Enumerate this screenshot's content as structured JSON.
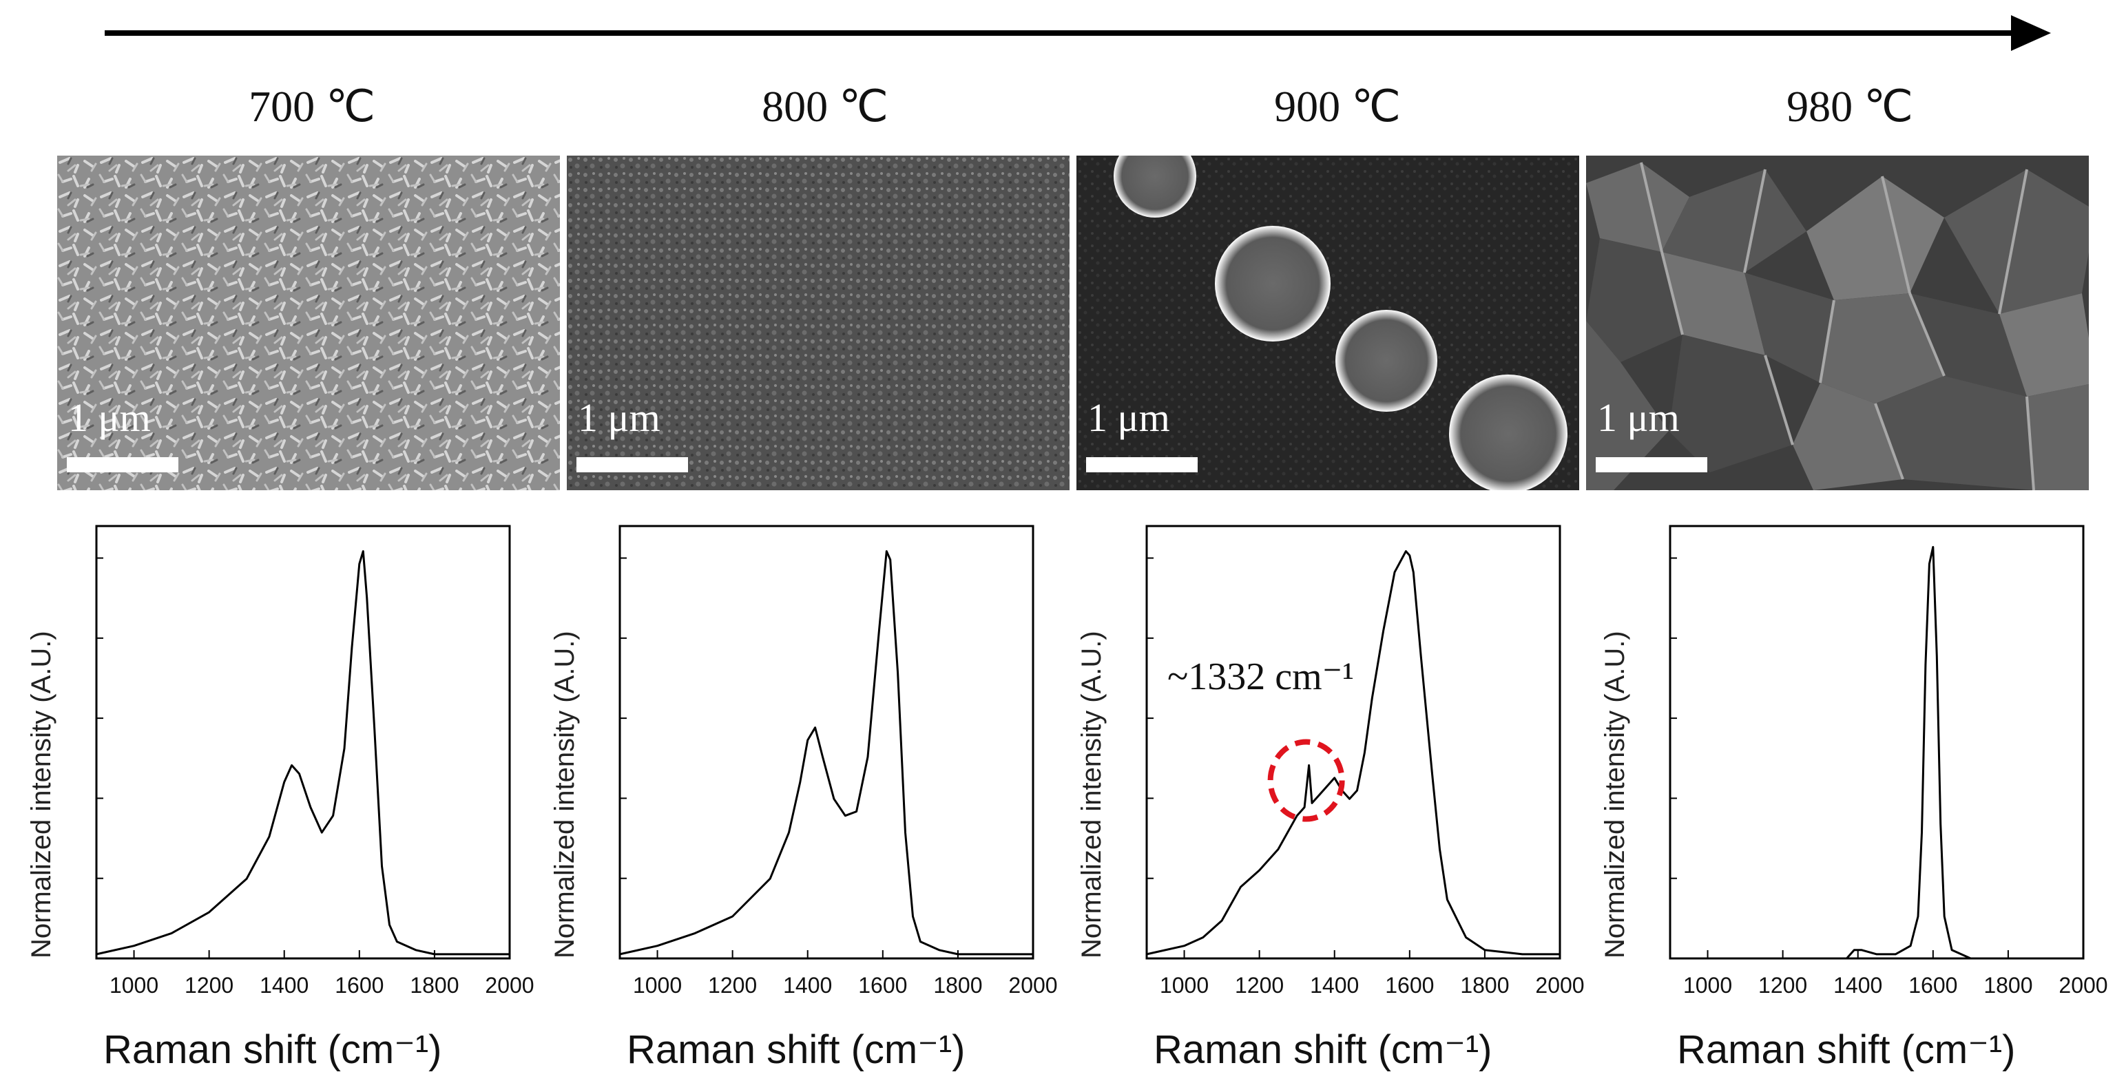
{
  "figure": {
    "temperatures": [
      "700 ℃",
      "800 ℃",
      "900 ℃",
      "980 ℃"
    ],
    "scale_bar_label": "1 μm",
    "morphology": [
      "nanoflake film",
      "fine granular film",
      "particles on dark substrate",
      "crumpled sheets"
    ]
  },
  "colors": {
    "line": "#000000",
    "marker": "#e0141e",
    "sem_background": "#2c2c2c"
  },
  "chart_data": [
    {
      "type": "line",
      "panel": "700 ℃",
      "xlabel": "Raman shift (cm⁻¹)",
      "ylabel": "Normalized intensity (A.U.)",
      "xlim": [
        900,
        2000
      ],
      "ylim": [
        0,
        1.03
      ],
      "xticks": [
        "1000",
        "1200",
        "1400",
        "1600",
        "1800",
        "2000"
      ],
      "x": [
        900,
        1000,
        1100,
        1200,
        1300,
        1360,
        1400,
        1420,
        1440,
        1470,
        1500,
        1530,
        1560,
        1580,
        1600,
        1610,
        1620,
        1640,
        1660,
        1680,
        1700,
        1750,
        1800,
        1900,
        2000
      ],
      "values": [
        0.01,
        0.03,
        0.06,
        0.11,
        0.19,
        0.29,
        0.42,
        0.46,
        0.44,
        0.36,
        0.3,
        0.34,
        0.5,
        0.74,
        0.94,
        0.97,
        0.86,
        0.55,
        0.22,
        0.08,
        0.04,
        0.02,
        0.01,
        0.01,
        0.01
      ]
    },
    {
      "type": "line",
      "panel": "800 ℃",
      "xlabel": "Raman shift (cm⁻¹)",
      "ylabel": "Normalized intensity (A.U.)",
      "xlim": [
        900,
        2000
      ],
      "ylim": [
        0,
        1.03
      ],
      "xticks": [
        "1000",
        "1200",
        "1400",
        "1600",
        "1800",
        "2000"
      ],
      "x": [
        900,
        1000,
        1100,
        1200,
        1300,
        1350,
        1380,
        1400,
        1420,
        1440,
        1470,
        1500,
        1530,
        1560,
        1590,
        1610,
        1620,
        1640,
        1660,
        1680,
        1700,
        1750,
        1800,
        1900,
        2000
      ],
      "values": [
        0.01,
        0.03,
        0.06,
        0.1,
        0.19,
        0.3,
        0.42,
        0.52,
        0.55,
        0.48,
        0.38,
        0.34,
        0.35,
        0.48,
        0.78,
        0.97,
        0.95,
        0.68,
        0.3,
        0.1,
        0.04,
        0.02,
        0.01,
        0.01,
        0.01
      ]
    },
    {
      "type": "line",
      "panel": "900 ℃",
      "xlabel": "Raman shift (cm⁻¹)",
      "ylabel": "Normalized intensity (A.U.)",
      "xlim": [
        900,
        2000
      ],
      "ylim": [
        0,
        1.03
      ],
      "xticks": [
        "1000",
        "1200",
        "1400",
        "1600",
        "1800",
        "2000"
      ],
      "annotation": "~1332 cm⁻¹",
      "highlight_x": 1332,
      "x": [
        900,
        1000,
        1050,
        1100,
        1150,
        1200,
        1250,
        1300,
        1320,
        1332,
        1340,
        1360,
        1380,
        1400,
        1420,
        1440,
        1460,
        1480,
        1500,
        1530,
        1560,
        1590,
        1600,
        1610,
        1630,
        1660,
        1680,
        1700,
        1750,
        1800,
        1900,
        2000
      ],
      "values": [
        0.01,
        0.03,
        0.05,
        0.09,
        0.17,
        0.21,
        0.26,
        0.34,
        0.36,
        0.46,
        0.37,
        0.39,
        0.41,
        0.43,
        0.4,
        0.38,
        0.4,
        0.49,
        0.62,
        0.78,
        0.92,
        0.97,
        0.96,
        0.92,
        0.72,
        0.44,
        0.26,
        0.14,
        0.05,
        0.02,
        0.01,
        0.01
      ]
    },
    {
      "type": "line",
      "panel": "980 ℃",
      "xlabel": "Raman shift (cm⁻¹)",
      "ylabel": "Normalized intensity (A.U.)",
      "xlim": [
        900,
        2000
      ],
      "ylim": [
        0,
        1.03
      ],
      "xticks": [
        "1000",
        "1200",
        "1400",
        "1600",
        "1800",
        "2000"
      ],
      "x": [
        900,
        1000,
        1300,
        1370,
        1390,
        1410,
        1450,
        1500,
        1540,
        1560,
        1570,
        1580,
        1590,
        1600,
        1610,
        1620,
        1630,
        1650,
        1700,
        1800,
        2000
      ],
      "values": [
        0.0,
        0.0,
        0.0,
        0.0,
        0.02,
        0.02,
        0.01,
        0.01,
        0.03,
        0.1,
        0.3,
        0.7,
        0.94,
        0.98,
        0.72,
        0.32,
        0.1,
        0.02,
        0.0,
        0.0,
        0.0
      ]
    }
  ]
}
